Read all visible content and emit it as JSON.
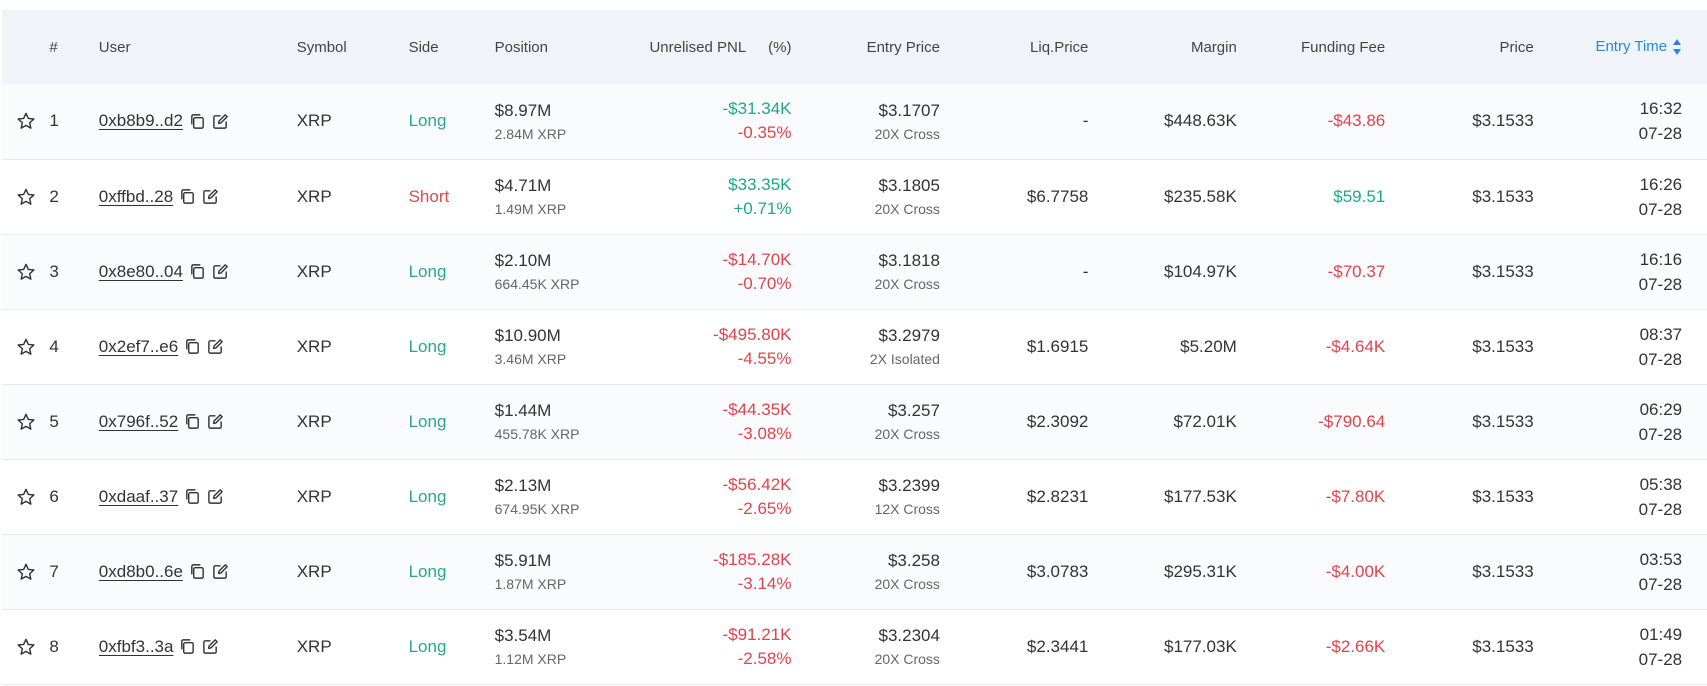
{
  "header": {
    "rank": "#",
    "user": "User",
    "symbol": "Symbol",
    "side": "Side",
    "position": "Position",
    "pnl": "Unrelised PNL",
    "pnl_pct": "(%)",
    "entry_price": "Entry Price",
    "liq_price": "Liq.Price",
    "margin": "Margin",
    "funding_fee": "Funding Fee",
    "price": "Price",
    "entry_time": "Entry Time"
  },
  "colors": {
    "long": "#2aa889",
    "short": "#e04a4a",
    "positive": "#1fa888",
    "negative": "#e0444e",
    "sort_active": "#2a86d8"
  },
  "icons": {
    "favorite": "star-outline-icon",
    "copy": "copy-icon",
    "edit": "edit-icon",
    "sort": "sort-arrows-icon"
  },
  "rows": [
    {
      "rank": "1",
      "user": "0xb8b9..d2",
      "symbol": "XRP",
      "side": "Long",
      "side_type": "long",
      "position": "$8.97M",
      "position_qty": "2.84M XRP",
      "pnl": "-$31.34K",
      "pnl_color": "green",
      "pnl_pct": "-0.35%",
      "pct_color": "red",
      "entry_price": "$3.1707",
      "leverage": "20X Cross",
      "liq_price": "-",
      "margin": "$448.63K",
      "funding_fee": "-$43.86",
      "fee_color": "red",
      "price": "$3.1533",
      "time": "16:32",
      "date": "07-28"
    },
    {
      "rank": "2",
      "user": "0xffbd..28",
      "symbol": "XRP",
      "side": "Short",
      "side_type": "short",
      "position": "$4.71M",
      "position_qty": "1.49M XRP",
      "pnl": "$33.35K",
      "pnl_color": "green",
      "pnl_pct": "+0.71%",
      "pct_color": "green",
      "entry_price": "$3.1805",
      "leverage": "20X Cross",
      "liq_price": "$6.7758",
      "margin": "$235.58K",
      "funding_fee": "$59.51",
      "fee_color": "green",
      "price": "$3.1533",
      "time": "16:26",
      "date": "07-28"
    },
    {
      "rank": "3",
      "user": "0x8e80..04",
      "symbol": "XRP",
      "side": "Long",
      "side_type": "long",
      "position": "$2.10M",
      "position_qty": "664.45K XRP",
      "pnl": "-$14.70K",
      "pnl_color": "red",
      "pnl_pct": "-0.70%",
      "pct_color": "red",
      "entry_price": "$3.1818",
      "leverage": "20X Cross",
      "liq_price": "-",
      "margin": "$104.97K",
      "funding_fee": "-$70.37",
      "fee_color": "red",
      "price": "$3.1533",
      "time": "16:16",
      "date": "07-28"
    },
    {
      "rank": "4",
      "user": "0x2ef7..e6",
      "symbol": "XRP",
      "side": "Long",
      "side_type": "long",
      "position": "$10.90M",
      "position_qty": "3.46M XRP",
      "pnl": "-$495.80K",
      "pnl_color": "red",
      "pnl_pct": "-4.55%",
      "pct_color": "red",
      "entry_price": "$3.2979",
      "leverage": "2X Isolated",
      "liq_price": "$1.6915",
      "margin": "$5.20M",
      "funding_fee": "-$4.64K",
      "fee_color": "red",
      "price": "$3.1533",
      "time": "08:37",
      "date": "07-28"
    },
    {
      "rank": "5",
      "user": "0x796f..52",
      "symbol": "XRP",
      "side": "Long",
      "side_type": "long",
      "position": "$1.44M",
      "position_qty": "455.78K XRP",
      "pnl": "-$44.35K",
      "pnl_color": "red",
      "pnl_pct": "-3.08%",
      "pct_color": "red",
      "entry_price": "$3.257",
      "leverage": "20X Cross",
      "liq_price": "$2.3092",
      "margin": "$72.01K",
      "funding_fee": "-$790.64",
      "fee_color": "red",
      "price": "$3.1533",
      "time": "06:29",
      "date": "07-28"
    },
    {
      "rank": "6",
      "user": "0xdaaf..37",
      "symbol": "XRP",
      "side": "Long",
      "side_type": "long",
      "position": "$2.13M",
      "position_qty": "674.95K XRP",
      "pnl": "-$56.42K",
      "pnl_color": "red",
      "pnl_pct": "-2.65%",
      "pct_color": "red",
      "entry_price": "$3.2399",
      "leverage": "12X Cross",
      "liq_price": "$2.8231",
      "margin": "$177.53K",
      "funding_fee": "-$7.80K",
      "fee_color": "red",
      "price": "$3.1533",
      "time": "05:38",
      "date": "07-28"
    },
    {
      "rank": "7",
      "user": "0xd8b0..6e",
      "symbol": "XRP",
      "side": "Long",
      "side_type": "long",
      "position": "$5.91M",
      "position_qty": "1.87M XRP",
      "pnl": "-$185.28K",
      "pnl_color": "red",
      "pnl_pct": "-3.14%",
      "pct_color": "red",
      "entry_price": "$3.258",
      "leverage": "20X Cross",
      "liq_price": "$3.0783",
      "margin": "$295.31K",
      "funding_fee": "-$4.00K",
      "fee_color": "red",
      "price": "$3.1533",
      "time": "03:53",
      "date": "07-28"
    },
    {
      "rank": "8",
      "user": "0xfbf3..3a",
      "symbol": "XRP",
      "side": "Long",
      "side_type": "long",
      "position": "$3.54M",
      "position_qty": "1.12M XRP",
      "pnl": "-$91.21K",
      "pnl_color": "red",
      "pnl_pct": "-2.58%",
      "pct_color": "red",
      "entry_price": "$3.2304",
      "leverage": "20X Cross",
      "liq_price": "$2.3441",
      "margin": "$177.03K",
      "funding_fee": "-$2.66K",
      "fee_color": "red",
      "price": "$3.1533",
      "time": "01:49",
      "date": "07-28"
    }
  ]
}
